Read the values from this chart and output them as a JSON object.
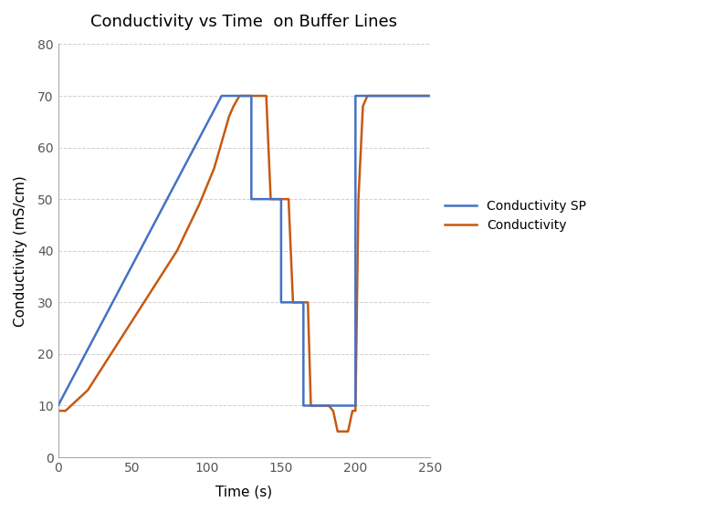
{
  "title": "Conductivity vs Time  on Buffer Lines",
  "xlabel": "Time (s)",
  "ylabel": "Conductivity (mS/cm)",
  "xlim": [
    0,
    250
  ],
  "ylim": [
    0,
    80
  ],
  "xticks": [
    0,
    50,
    100,
    150,
    200,
    250
  ],
  "yticks": [
    0,
    10,
    20,
    30,
    40,
    50,
    60,
    70,
    80
  ],
  "legend_labels": [
    "Conductivity SP",
    "Conductivity"
  ],
  "sp_color": "#4472C4",
  "cond_color": "#C65911",
  "background_color": "#FFFFFF",
  "grid_color": "#D0D0D0",
  "sp_x": [
    0,
    110,
    110,
    130,
    130,
    150,
    150,
    165,
    165,
    200,
    200,
    250
  ],
  "sp_y": [
    10,
    70,
    70,
    70,
    50,
    50,
    30,
    30,
    10,
    10,
    70,
    70
  ],
  "cond_x": [
    0,
    5,
    20,
    40,
    60,
    80,
    95,
    105,
    112,
    115,
    118,
    122,
    125,
    128,
    130,
    132,
    135,
    138,
    140,
    143,
    147,
    150,
    152,
    155,
    158,
    162,
    165,
    168,
    170,
    173,
    175,
    178,
    182,
    185,
    188,
    192,
    195,
    198,
    200,
    202,
    205,
    208,
    210,
    215,
    220,
    230,
    240,
    250
  ],
  "cond_y": [
    9,
    9,
    13,
    22,
    31,
    40,
    49,
    56,
    63,
    66,
    68,
    70,
    70,
    70,
    70,
    70,
    70,
    70,
    70,
    50,
    50,
    50,
    50,
    50,
    30,
    30,
    30,
    30,
    10,
    10,
    10,
    10,
    10,
    9,
    5,
    5,
    5,
    9,
    9,
    50,
    68,
    70,
    70,
    70,
    70,
    70,
    70,
    70
  ]
}
